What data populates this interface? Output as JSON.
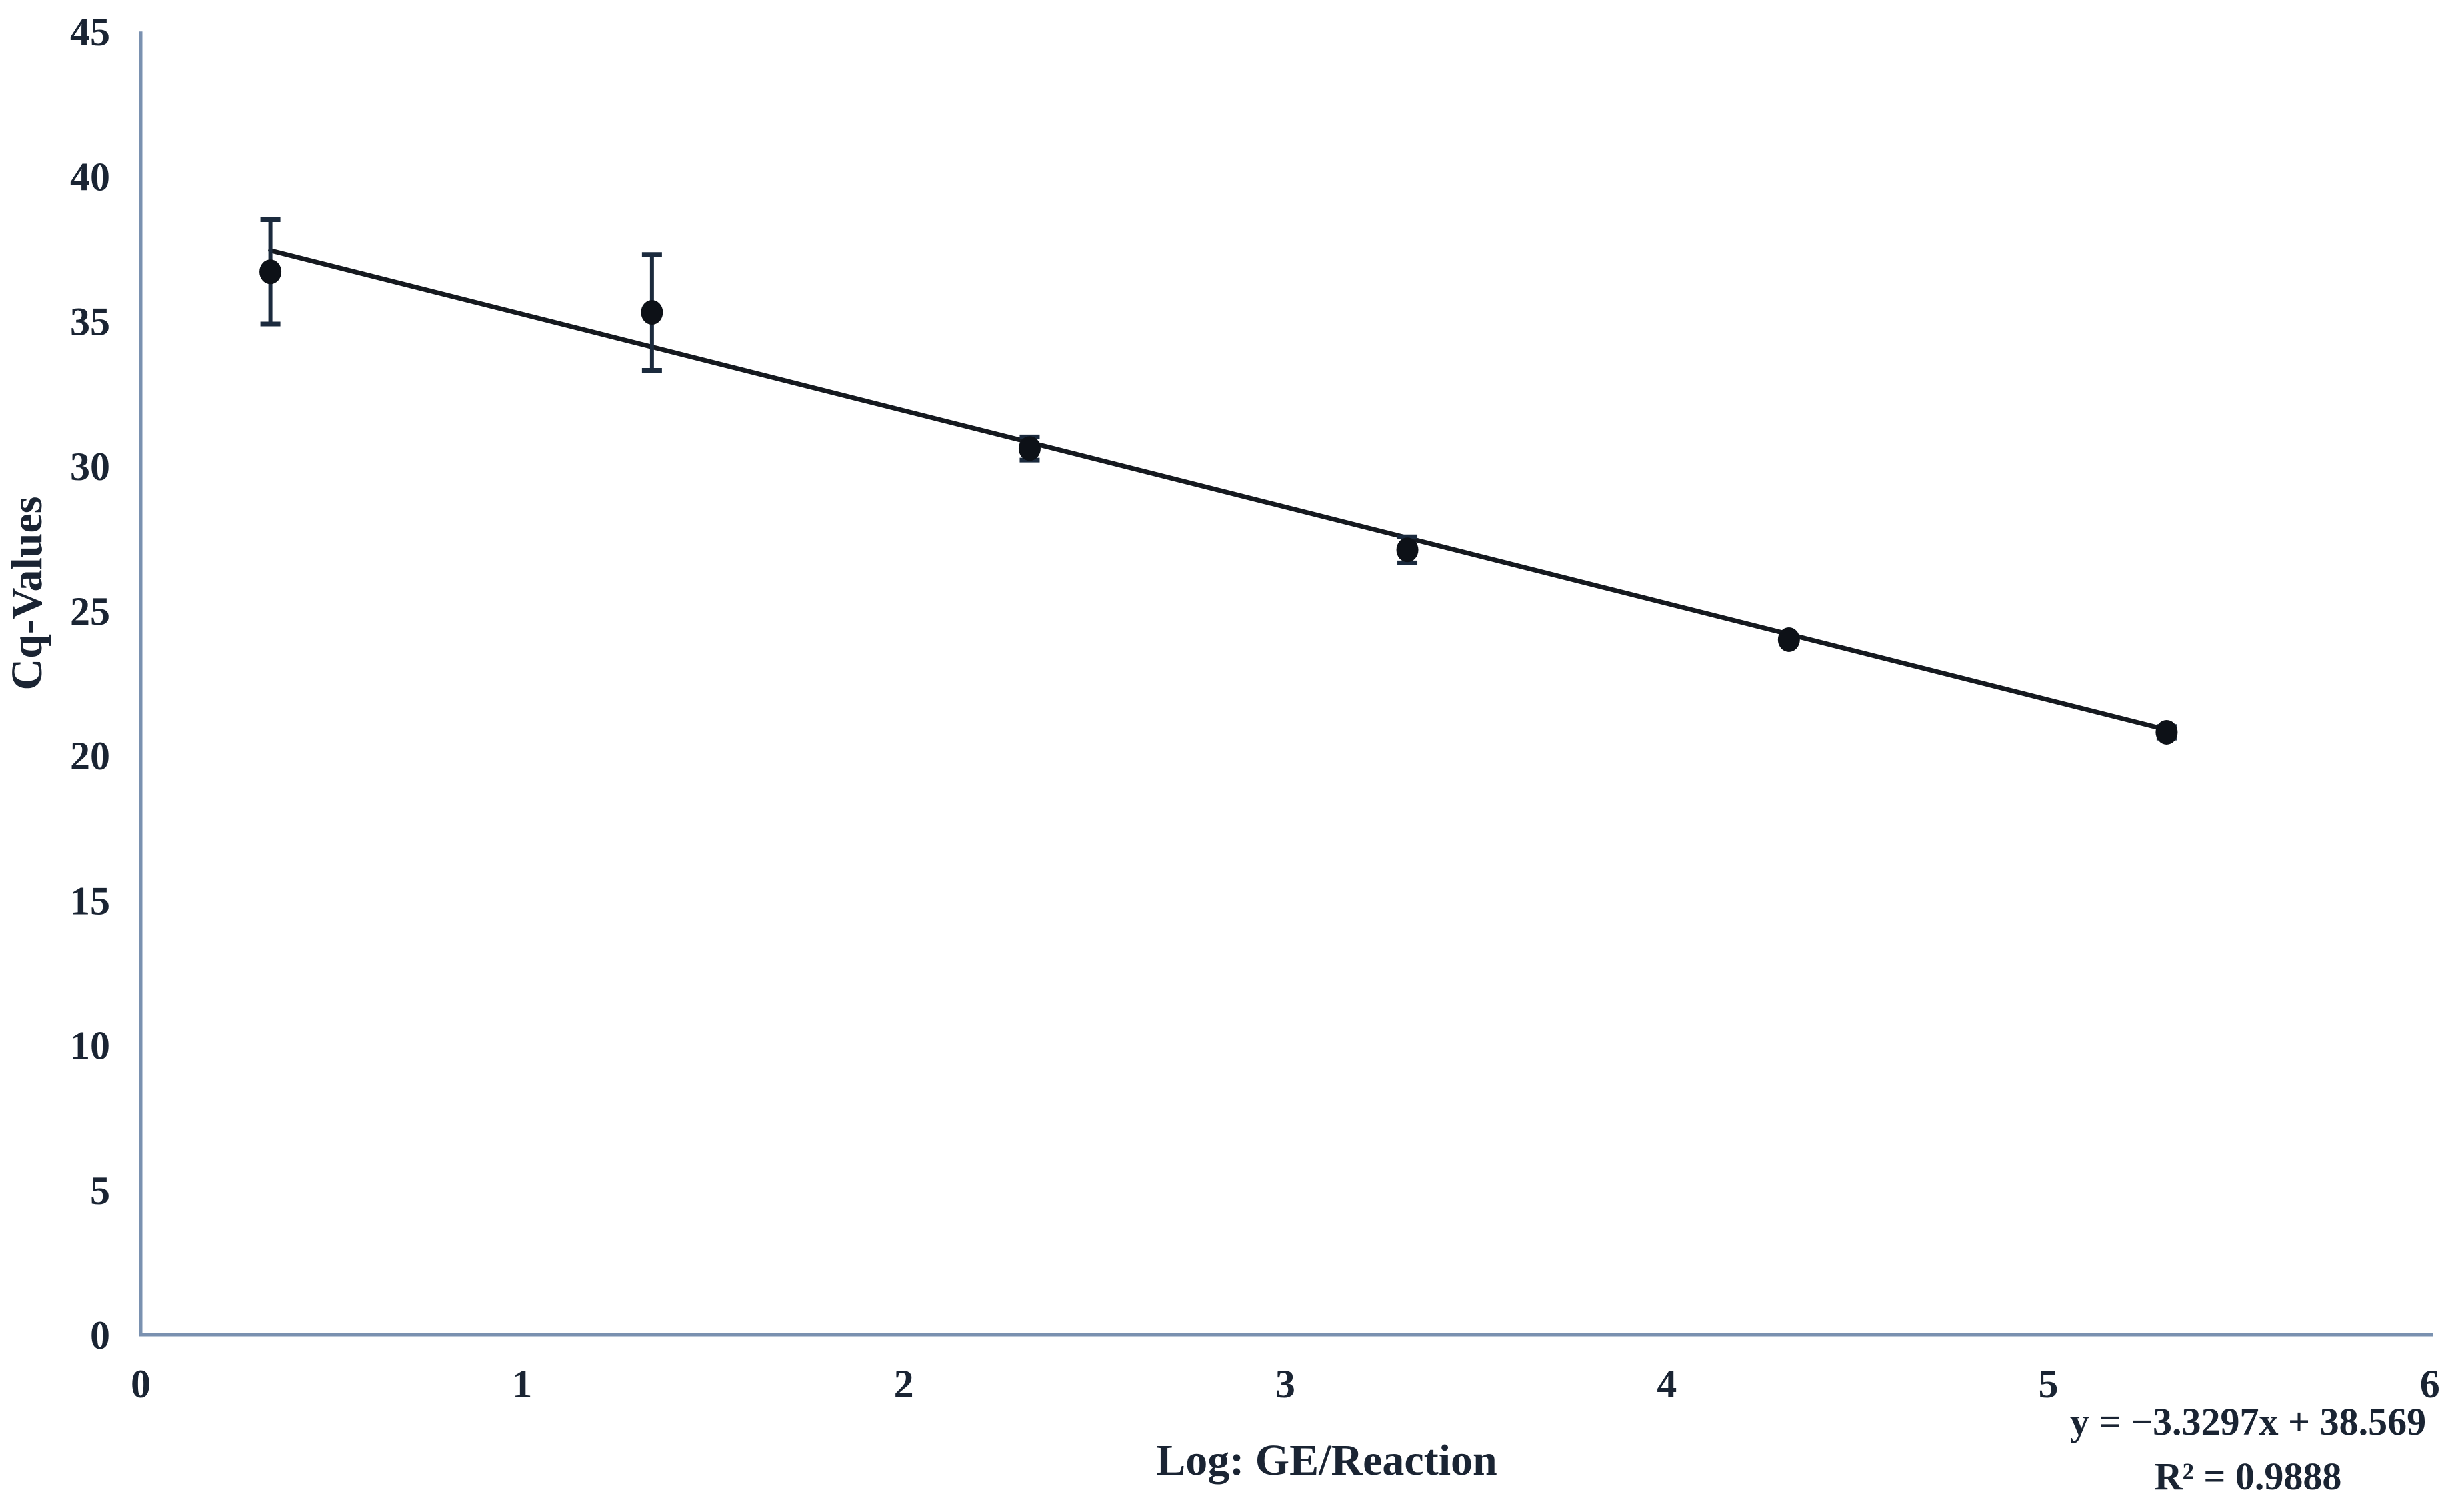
{
  "chart_data": {
    "type": "scatter",
    "title": "",
    "xlabel": "Log: GE/Reaction",
    "ylabel": "Cq-Values",
    "xlim": [
      0,
      6
    ],
    "ylim": [
      0,
      45
    ],
    "x_ticks": [
      0,
      1,
      2,
      3,
      4,
      5,
      6
    ],
    "y_ticks": [
      0,
      5,
      10,
      15,
      20,
      25,
      30,
      35,
      40,
      45
    ],
    "grid": false,
    "legend": "none",
    "points": [
      {
        "x": 0.34,
        "y": 36.7,
        "yerr": 1.8
      },
      {
        "x": 1.34,
        "y": 35.3,
        "yerr": 2.0
      },
      {
        "x": 2.33,
        "y": 30.6,
        "yerr": 0.4
      },
      {
        "x": 3.32,
        "y": 27.1,
        "yerr": 0.45
      },
      {
        "x": 4.32,
        "y": 24.0,
        "yerr": 0.1
      },
      {
        "x": 5.31,
        "y": 20.8,
        "yerr": 0.2
      }
    ],
    "trendline": {
      "slope": -3.3297,
      "intercept": 38.569,
      "x_start": 0.34,
      "x_end": 5.31,
      "equation": "y = −3.3297x + 38.569",
      "r_squared": "R² = 0.9888"
    },
    "colors": {
      "axis": "#7a91b0",
      "text": "#1a2433",
      "marker": "#0d1117",
      "error_bar": "#1b2a3d",
      "trendline": "#15191f",
      "background": "#ffffff"
    }
  }
}
